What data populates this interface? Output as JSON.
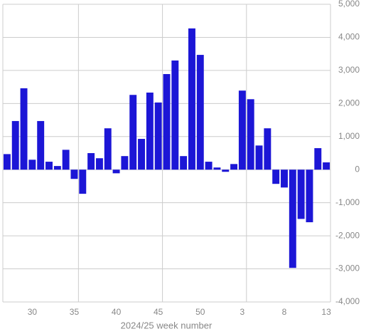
{
  "chart_data": {
    "type": "bar",
    "x_label": "2024/25 week number",
    "categories": [
      null,
      null,
      null,
      "30",
      null,
      null,
      null,
      null,
      "35",
      null,
      null,
      null,
      null,
      "40",
      null,
      null,
      null,
      null,
      "45",
      null,
      null,
      null,
      null,
      "50",
      null,
      null,
      null,
      null,
      "3",
      null,
      null,
      null,
      null,
      "8",
      null,
      null,
      null,
      null,
      "13"
    ],
    "values": [
      470,
      1470,
      2460,
      300,
      1470,
      240,
      110,
      600,
      -280,
      -730,
      500,
      345,
      1250,
      -110,
      410,
      2260,
      930,
      2330,
      2030,
      2890,
      3300,
      410,
      4270,
      3470,
      240,
      65,
      -65,
      170,
      2390,
      2130,
      730,
      1250,
      -430,
      -540,
      -2970,
      -1490,
      -1590,
      650,
      220
    ],
    "color": "#1c16d6",
    "ylim": [
      -4000,
      5000
    ],
    "yticks": [
      {
        "value": -4000,
        "label": "-4,000"
      },
      {
        "value": -3000,
        "label": "-3,000"
      },
      {
        "value": -2000,
        "label": "-2,000"
      },
      {
        "value": -1000,
        "label": "-1,000"
      },
      0,
      {
        "value": 1000,
        "label": "1,000"
      },
      {
        "value": 2000,
        "label": "2,000"
      },
      {
        "value": 3000,
        "label": "3,000"
      },
      {
        "value": 4000,
        "label": "4,000"
      },
      {
        "value": 5000,
        "label": "5,000"
      }
    ],
    "grid": true
  }
}
